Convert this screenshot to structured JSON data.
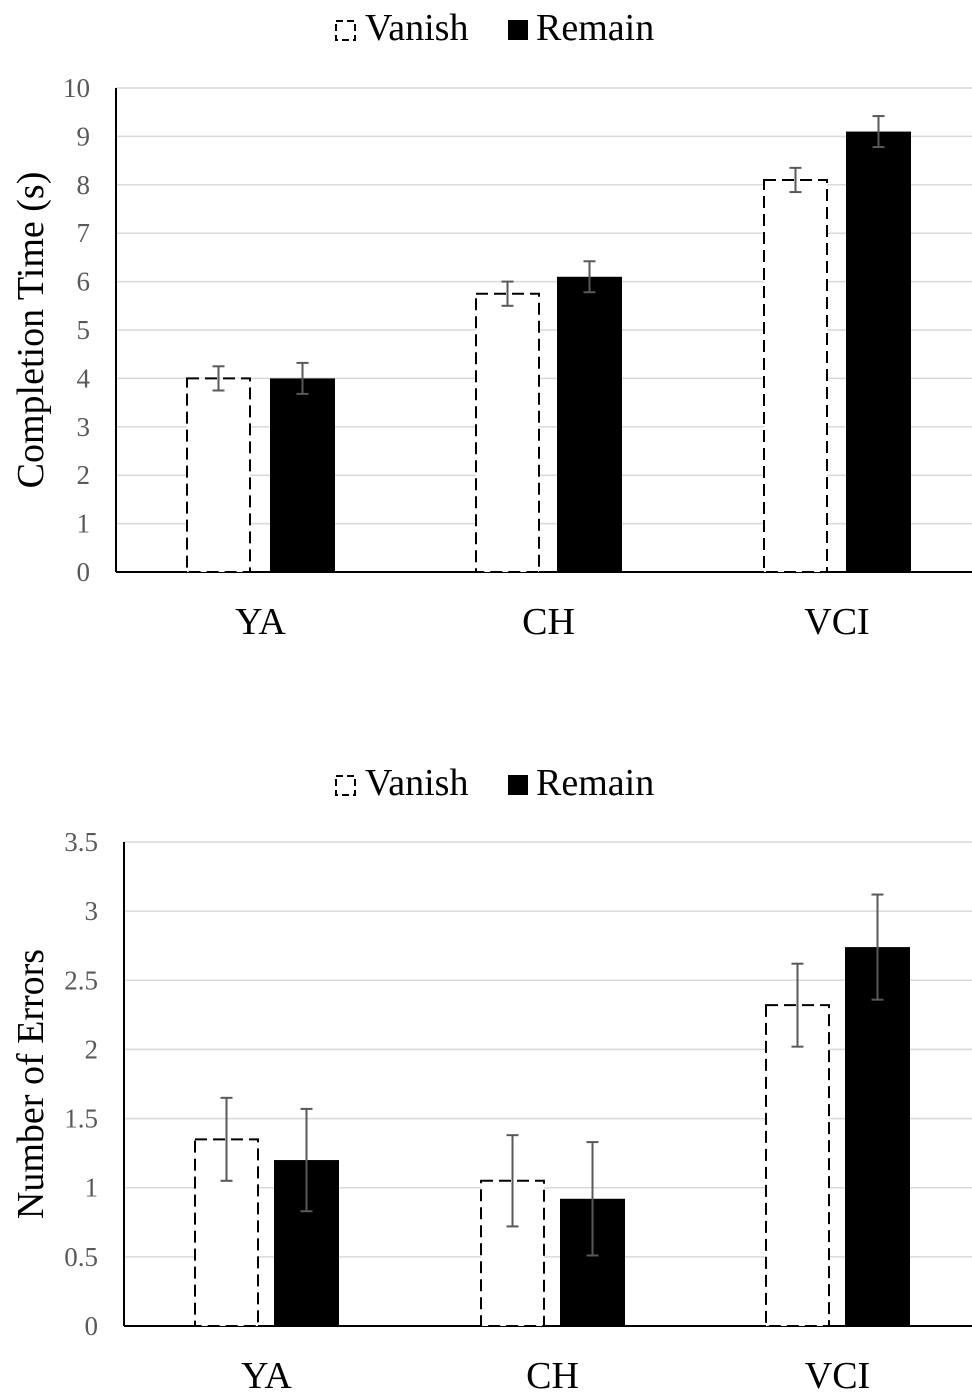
{
  "chart_data": [
    {
      "type": "bar",
      "categories": [
        "YA",
        "CH",
        "VCI"
      ],
      "series": [
        {
          "name": "Vanish",
          "values": [
            4.0,
            5.75,
            8.1
          ],
          "errors": [
            0.25,
            0.25,
            0.25
          ],
          "style": "dashed-outline"
        },
        {
          "name": "Remain",
          "values": [
            4.0,
            6.1,
            9.1
          ],
          "errors": [
            0.32,
            0.32,
            0.32
          ],
          "style": "solid"
        }
      ],
      "ylabel": "Completion Time (s)",
      "ylim": [
        0,
        10
      ],
      "yticks": [
        "0",
        "1",
        "2",
        "3",
        "4",
        "5",
        "6",
        "7",
        "8",
        "9",
        "10"
      ],
      "grid": true,
      "legend": "top-center"
    },
    {
      "type": "bar",
      "categories": [
        "YA",
        "CH",
        "VCI"
      ],
      "series": [
        {
          "name": "Vanish",
          "values": [
            1.35,
            1.05,
            2.32
          ],
          "errors": [
            0.3,
            0.33,
            0.3
          ],
          "style": "dashed-outline"
        },
        {
          "name": "Remain",
          "values": [
            1.2,
            0.92,
            2.74
          ],
          "errors": [
            0.37,
            0.41,
            0.38
          ],
          "style": "solid"
        }
      ],
      "ylabel": "Number of Errors",
      "ylim": [
        0,
        3.5
      ],
      "yticks": [
        "0",
        "0.5",
        "1",
        "1.5",
        "2",
        "2.5",
        "3",
        "3.5"
      ],
      "grid": true,
      "legend": "top-center"
    }
  ],
  "colors": {
    "grid": "#d9d9d9",
    "axis": "#000000",
    "bar": "#000000",
    "tick": "#595959",
    "errorbar": "#595959"
  }
}
